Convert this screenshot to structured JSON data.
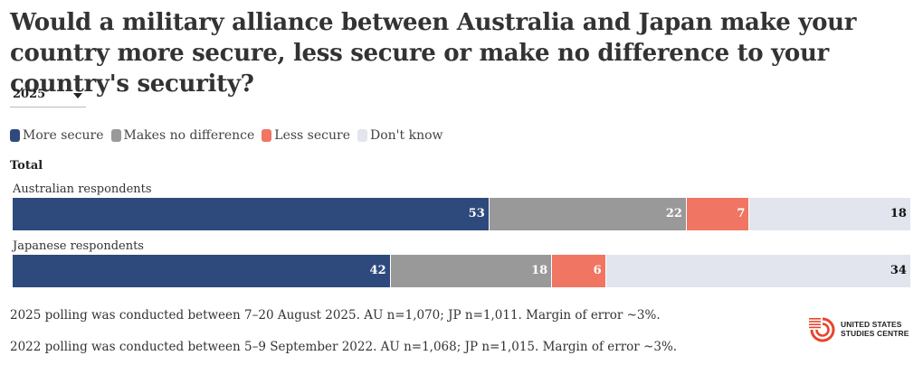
{
  "title": "Would a military alliance between Australia and Japan make your country more secure, less secure or make no difference to your country's security?",
  "year_selector": {
    "selected": "2025"
  },
  "legend": [
    {
      "label": "More secure",
      "color": "#2e4a7d"
    },
    {
      "label": "Makes no difference",
      "color": "#999999"
    },
    {
      "label": "Less secure",
      "color": "#f07562"
    },
    {
      "label": "Don't know",
      "color": "#e2e5ee"
    }
  ],
  "section_label": "Total",
  "chart_data": {
    "type": "bar",
    "orientation": "horizontal",
    "stacked": true,
    "categories": [
      "Australian respondents",
      "Japanese respondents"
    ],
    "series": [
      {
        "name": "More secure",
        "values": [
          53,
          42
        ],
        "color": "#2e4a7d"
      },
      {
        "name": "Makes no difference",
        "values": [
          22,
          18
        ],
        "color": "#999999"
      },
      {
        "name": "Less secure",
        "values": [
          7,
          6
        ],
        "color": "#f07562"
      },
      {
        "name": "Don't know",
        "values": [
          18,
          34
        ],
        "color": "#e2e5ee"
      }
    ],
    "xlim": [
      0,
      100
    ],
    "legend_position": "top-left"
  },
  "notes": [
    "2025 polling was conducted between 7–20 August 2025. AU n=1,070; JP n=1,011. Margin of error ~3%.",
    "2022 polling was conducted between 5–9 September 2022. AU n=1,068; JP n=1,015. Margin of error ~3%."
  ],
  "logo": {
    "line1": "UNITED STATES",
    "line2": "STUDIES CENTRE"
  }
}
